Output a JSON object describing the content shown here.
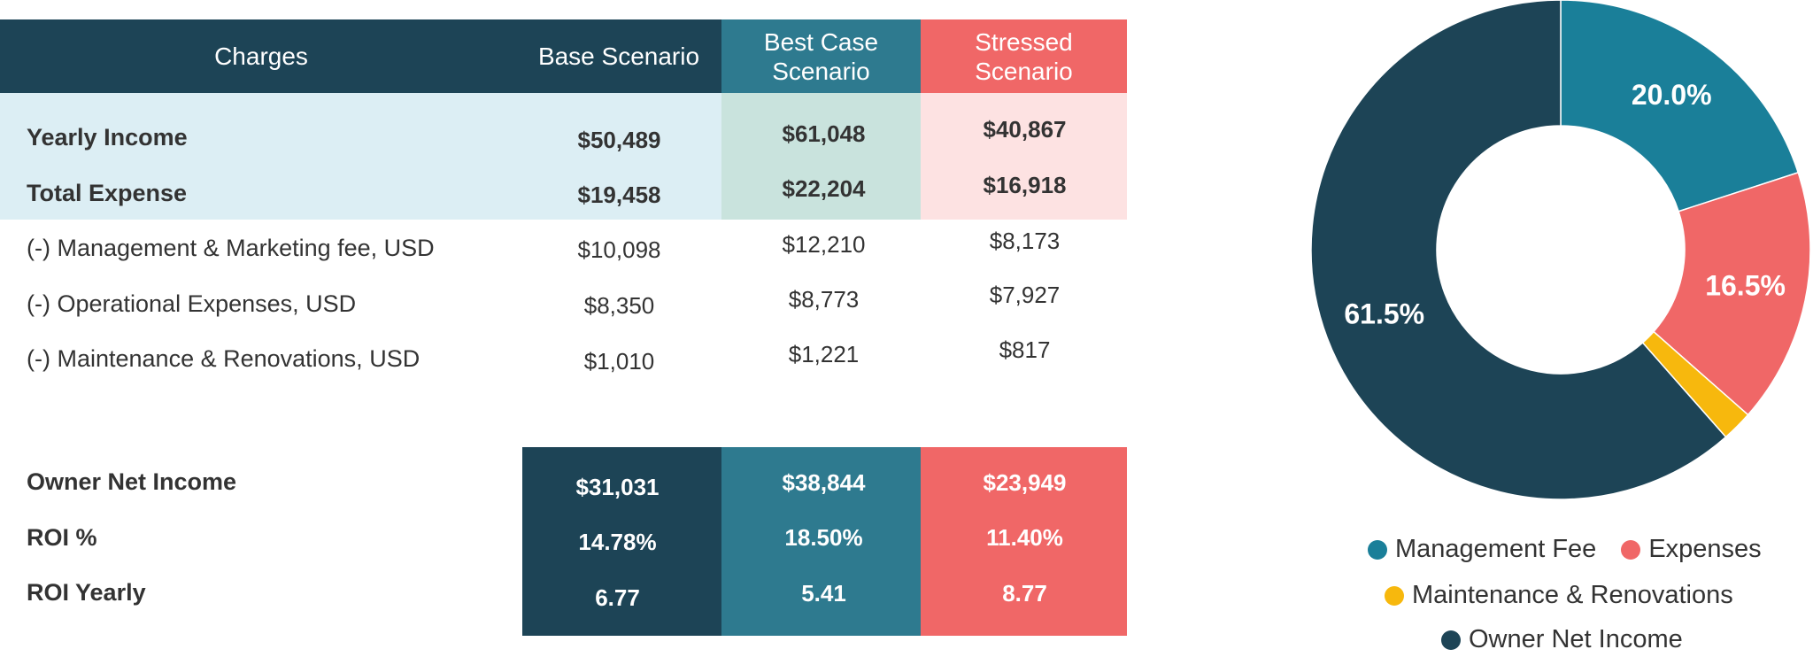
{
  "colors": {
    "navy": "#1d4456",
    "teal": "#2e7a8f",
    "coral": "#f06767",
    "light_blue_bg": "#dceef4",
    "light_teal_bg": "#c9e3dd",
    "light_coral_bg": "#fde2e2",
    "donut_mgmt": "#1a7f99",
    "donut_expenses": "#f06767",
    "donut_maint": "#f7b80d",
    "donut_owner": "#1d4456"
  },
  "table": {
    "headers": {
      "charges": "Charges",
      "base": "Base Scenario",
      "best_line1": "Best Case",
      "best_line2": "Scenario",
      "stressed_line1": "Stressed",
      "stressed_line2": "Scenario"
    },
    "rows": [
      {
        "label": "Yearly Income",
        "base": "$50,489",
        "best": "$61,048",
        "stressed": "$40,867"
      },
      {
        "label": "Total Expense",
        "base": "$19,458",
        "best": "$22,204",
        "stressed": "$16,918"
      },
      {
        "label": "(-) Management & Marketing fee, USD",
        "base": "$10,098",
        "best": "$12,210",
        "stressed": "$8,173"
      },
      {
        "label": "(-) Operational Expenses, USD",
        "base": "$8,350",
        "best": "$8,773",
        "stressed": "$7,927"
      },
      {
        "label": "(-) Maintenance & Renovations, USD",
        "base": "$1,010",
        "best": "$1,221",
        "stressed": "$817"
      }
    ],
    "summary": [
      {
        "label": "Owner Net Income",
        "base": "$31,031",
        "best": "$38,844",
        "stressed": "$23,949"
      },
      {
        "label": "ROI %",
        "base": "14.78%",
        "best": "18.50%",
        "stressed": "11.40%"
      },
      {
        "label": "ROI Yearly",
        "base": "6.77",
        "best": "5.41",
        "stressed": "8.77"
      }
    ]
  },
  "chart_data": {
    "type": "pie",
    "variant": "donut",
    "categories": [
      "Management Fee",
      "Expenses",
      "Maintenance & Renovations",
      "Owner Net Income"
    ],
    "values": [
      20.0,
      16.5,
      2.0,
      61.5
    ],
    "labels": [
      "20.0%",
      "16.5%",
      "",
      "61.5%"
    ],
    "legend_position": "bottom"
  }
}
